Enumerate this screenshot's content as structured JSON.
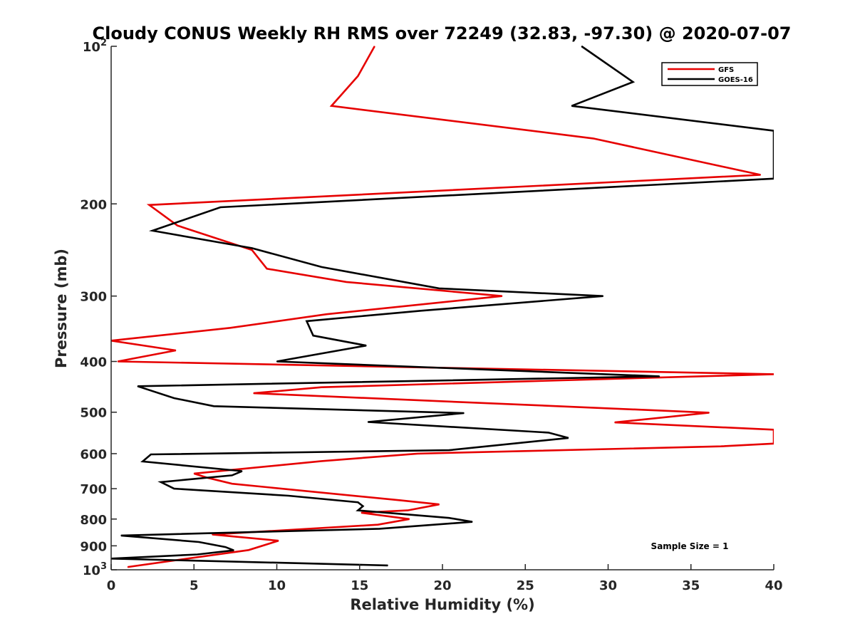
{
  "chart_data": {
    "type": "line",
    "title": "Cloudy CONUS Weekly RH RMS over 72249 (32.83, -97.30) @ 2020-07-07",
    "xlabel": "Relative Humidity (%)",
    "ylabel": "Pressure (mb)",
    "xlim": [
      0,
      40
    ],
    "ylim": [
      100,
      1000
    ],
    "y_scale": "log",
    "y_reversed": true,
    "grid": false,
    "legend_position": "top-right",
    "x_ticks": [
      0,
      5,
      10,
      15,
      20,
      25,
      30,
      35,
      40
    ],
    "x_tick_labels": [
      "0",
      "5",
      "10",
      "15",
      "20",
      "25",
      "30",
      "35",
      "40"
    ],
    "y_ticks": [
      100,
      200,
      300,
      400,
      500,
      600,
      700,
      800,
      900,
      1000
    ],
    "y_tick_labels": [
      {
        "base": "10",
        "sup": "2"
      },
      {
        "base": "200",
        "sup": ""
      },
      {
        "base": "300",
        "sup": ""
      },
      {
        "base": "400",
        "sup": ""
      },
      {
        "base": "500",
        "sup": ""
      },
      {
        "base": "600",
        "sup": ""
      },
      {
        "base": "700",
        "sup": ""
      },
      {
        "base": "800",
        "sup": ""
      },
      {
        "base": "900",
        "sup": ""
      },
      {
        "base": "10",
        "sup": "3"
      }
    ],
    "annotation": "Sample Size = 1",
    "series": [
      {
        "name": "GFS",
        "color": "#e60000",
        "points": [
          [
            15.9,
            100
          ],
          [
            14.9,
            114
          ],
          [
            13.3,
            130
          ],
          [
            29.1,
            150
          ],
          [
            39.2,
            176
          ],
          [
            2.3,
            201
          ],
          [
            4.0,
            220
          ],
          [
            8.5,
            245
          ],
          [
            9.4,
            266
          ],
          [
            14.2,
            282
          ],
          [
            23.6,
            300
          ],
          [
            13.0,
            325
          ],
          [
            7.2,
            345
          ],
          [
            0.0,
            365
          ],
          [
            3.9,
            381
          ],
          [
            0.4,
            400
          ],
          [
            40.0,
            423
          ],
          [
            12.7,
            448
          ],
          [
            8.6,
            460
          ],
          [
            36.1,
            501
          ],
          [
            30.4,
            523
          ],
          [
            40.0,
            540
          ],
          [
            40.0,
            574
          ],
          [
            36.8,
            581
          ],
          [
            18.5,
            600
          ],
          [
            12.7,
            620
          ],
          [
            5.0,
            655
          ],
          [
            5.8,
            667
          ],
          [
            7.3,
            685
          ],
          [
            17.5,
            737
          ],
          [
            19.8,
            750
          ],
          [
            17.9,
            770
          ],
          [
            15.1,
            778
          ],
          [
            18.0,
            800
          ],
          [
            16.1,
            820
          ],
          [
            6.1,
            856
          ],
          [
            10.1,
            880
          ],
          [
            8.3,
            917
          ],
          [
            1.0,
            988
          ]
        ]
      },
      {
        "name": "GOES-16",
        "color": "#000000",
        "points": [
          [
            28.4,
            100
          ],
          [
            31.5,
            117
          ],
          [
            27.8,
            130
          ],
          [
            40.0,
            145
          ],
          [
            40.0,
            179
          ],
          [
            6.6,
            203
          ],
          [
            2.5,
            225
          ],
          [
            8.5,
            243
          ],
          [
            12.7,
            264
          ],
          [
            19.8,
            290
          ],
          [
            29.7,
            300
          ],
          [
            18.7,
            320
          ],
          [
            11.8,
            335
          ],
          [
            12.2,
            357
          ],
          [
            15.4,
            373
          ],
          [
            10.0,
            400
          ],
          [
            33.1,
            427
          ],
          [
            1.6,
            446
          ],
          [
            3.8,
            470
          ],
          [
            6.2,
            487
          ],
          [
            21.3,
            502
          ],
          [
            15.5,
            522
          ],
          [
            26.4,
            547
          ],
          [
            27.6,
            560
          ],
          [
            20.4,
            591
          ],
          [
            2.4,
            602
          ],
          [
            1.9,
            621
          ],
          [
            7.9,
            648
          ],
          [
            7.3,
            660
          ],
          [
            3.0,
            680
          ],
          [
            3.8,
            700
          ],
          [
            10.7,
            722
          ],
          [
            14.9,
            743
          ],
          [
            15.2,
            756
          ],
          [
            14.9,
            770
          ],
          [
            20.4,
            796
          ],
          [
            21.8,
            810
          ],
          [
            16.2,
            835
          ],
          [
            0.6,
            860
          ],
          [
            5.3,
            885
          ],
          [
            6.9,
            905
          ],
          [
            7.4,
            918
          ],
          [
            5.2,
            935
          ],
          [
            0.0,
            952
          ],
          [
            16.7,
            981
          ]
        ]
      }
    ]
  }
}
